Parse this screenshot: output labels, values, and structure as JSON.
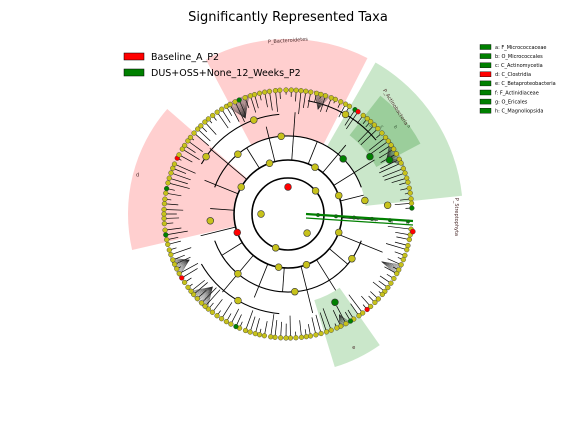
{
  "chart_data": {
    "type": "cladogram",
    "title": "Significantly Represented Taxa",
    "legend_placement": "top-left",
    "groups": [
      {
        "name": "Baseline_A_P2",
        "color": "#ff0000"
      },
      {
        "name": "DUS+OSS+None_12_Weeks_P2",
        "color": "#008000"
      }
    ],
    "node_color_nonsignificant": "#c7c21b",
    "clade_labels": [
      {
        "text": "P_Bacteroidetes",
        "group": "Baseline_A_P2"
      },
      {
        "text": "P_Actinobacteria",
        "group": "DUS+OSS+None_12_Weeks_P2"
      },
      {
        "text": "P_Streptophyta",
        "group": "DUS+OSS+None_12_Weeks_P2"
      }
    ],
    "inner_letters": [
      "a",
      "b",
      "c",
      "d",
      "e",
      "f",
      "g",
      "h"
    ],
    "sector_letters": [
      "d",
      "e"
    ],
    "biomarkers": [
      {
        "key": "a",
        "taxon": "a: F_Micrococcaceae",
        "group": "DUS+OSS+None_12_Weeks_P2"
      },
      {
        "key": "b",
        "taxon": "b: O_Micrococcales",
        "group": "DUS+OSS+None_12_Weeks_P2"
      },
      {
        "key": "c",
        "taxon": "c: C_Actinomycetia",
        "group": "DUS+OSS+None_12_Weeks_P2"
      },
      {
        "key": "d",
        "taxon": "d: C_Clostridia",
        "group": "Baseline_A_P2"
      },
      {
        "key": "e",
        "taxon": "e: C_Betaproteobacteria",
        "group": "DUS+OSS+None_12_Weeks_P2"
      },
      {
        "key": "f",
        "taxon": "f: F_Actinidiaceae",
        "group": "DUS+OSS+None_12_Weeks_P2"
      },
      {
        "key": "g",
        "taxon": "g: O_Ericales",
        "group": "DUS+OSS+None_12_Weeks_P2"
      },
      {
        "key": "h",
        "taxon": "h: C_Magnoliopsida",
        "group": "DUS+OSS+None_12_Weeks_P2"
      }
    ]
  }
}
